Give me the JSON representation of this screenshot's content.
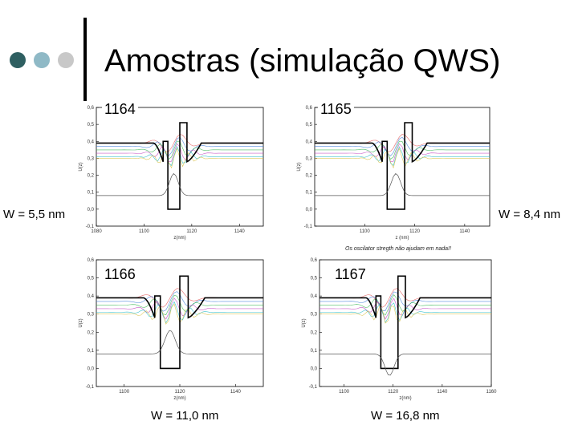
{
  "slide": {
    "title": "Amostras (simulação QWS)",
    "accent_colors": [
      "#2e5f61",
      "#8fb9c6",
      "#c8c8c8"
    ]
  },
  "labels": {
    "w_left_top": "W = 5,5 nm",
    "w_right_top": "W = 8,4 nm",
    "w_bottom_left": "W = 11,0 nm",
    "w_bottom_right": "W = 16,8 nm",
    "note": "Os oscilator stregth  não ajudam em nada!!"
  },
  "plots": [
    {
      "label": "1164",
      "xlabel": "z(nm)",
      "ylabel": "U(z)",
      "xticks": [
        "1080",
        "1100",
        "1120",
        "1140"
      ],
      "yticks": [
        "0,6",
        "0,5",
        "0,4",
        "0,3",
        "0,2",
        "0,1",
        "0,0",
        "-0,1"
      ],
      "xlim": [
        1080,
        1150
      ],
      "ylim": [
        -0.1,
        0.6
      ],
      "barrier_left": [
        1108,
        1110
      ],
      "well": [
        1110,
        1115
      ],
      "barrier_right": [
        1115,
        1118
      ],
      "ground_state_level": 0.08
    },
    {
      "label": "1165",
      "xlabel": "z (nm)",
      "ylabel": "U(z)",
      "xticks": [
        "1100",
        "1120",
        "1140"
      ],
      "yticks": [
        "0,6",
        "0,5",
        "0,4",
        "0,3",
        "0,2",
        "0,1",
        "0,0",
        "-0,1"
      ],
      "xlim": [
        1080,
        1150
      ],
      "ylim": [
        -0.1,
        0.6
      ],
      "barrier_left": [
        1107,
        1109
      ],
      "well": [
        1109,
        1116
      ],
      "barrier_right": [
        1116,
        1119
      ],
      "ground_state_level": 0.08
    },
    {
      "label": "1166",
      "xlabel": "z(nm)",
      "ylabel": "U(z)",
      "xticks": [
        "1100",
        "1120",
        "1140"
      ],
      "yticks": [
        "0,6",
        "0,5",
        "0,4",
        "0,3",
        "0,2",
        "0,1",
        "0,0",
        "-0,1"
      ],
      "xlim": [
        1090,
        1150
      ],
      "ylim": [
        -0.1,
        0.6
      ],
      "barrier_left": [
        1111,
        1113
      ],
      "well": [
        1113,
        1120
      ],
      "barrier_right": [
        1120,
        1123
      ],
      "ground_state_level": 0.08
    },
    {
      "label": "1167",
      "xlabel": "z(nm)",
      "ylabel": "U(z)",
      "xticks": [
        "1100",
        "1120",
        "1140",
        "1160"
      ],
      "yticks": [
        "0,6",
        "0,5",
        "0,4",
        "0,3",
        "0,2",
        "0,1",
        "0,0",
        "-0,1"
      ],
      "xlim": [
        1090,
        1160
      ],
      "ylim": [
        -0.1,
        0.6
      ],
      "barrier_left": [
        1113,
        1115
      ],
      "well": [
        1115,
        1122
      ],
      "barrier_right": [
        1122,
        1125
      ],
      "ground_state_level": 0.08
    }
  ]
}
